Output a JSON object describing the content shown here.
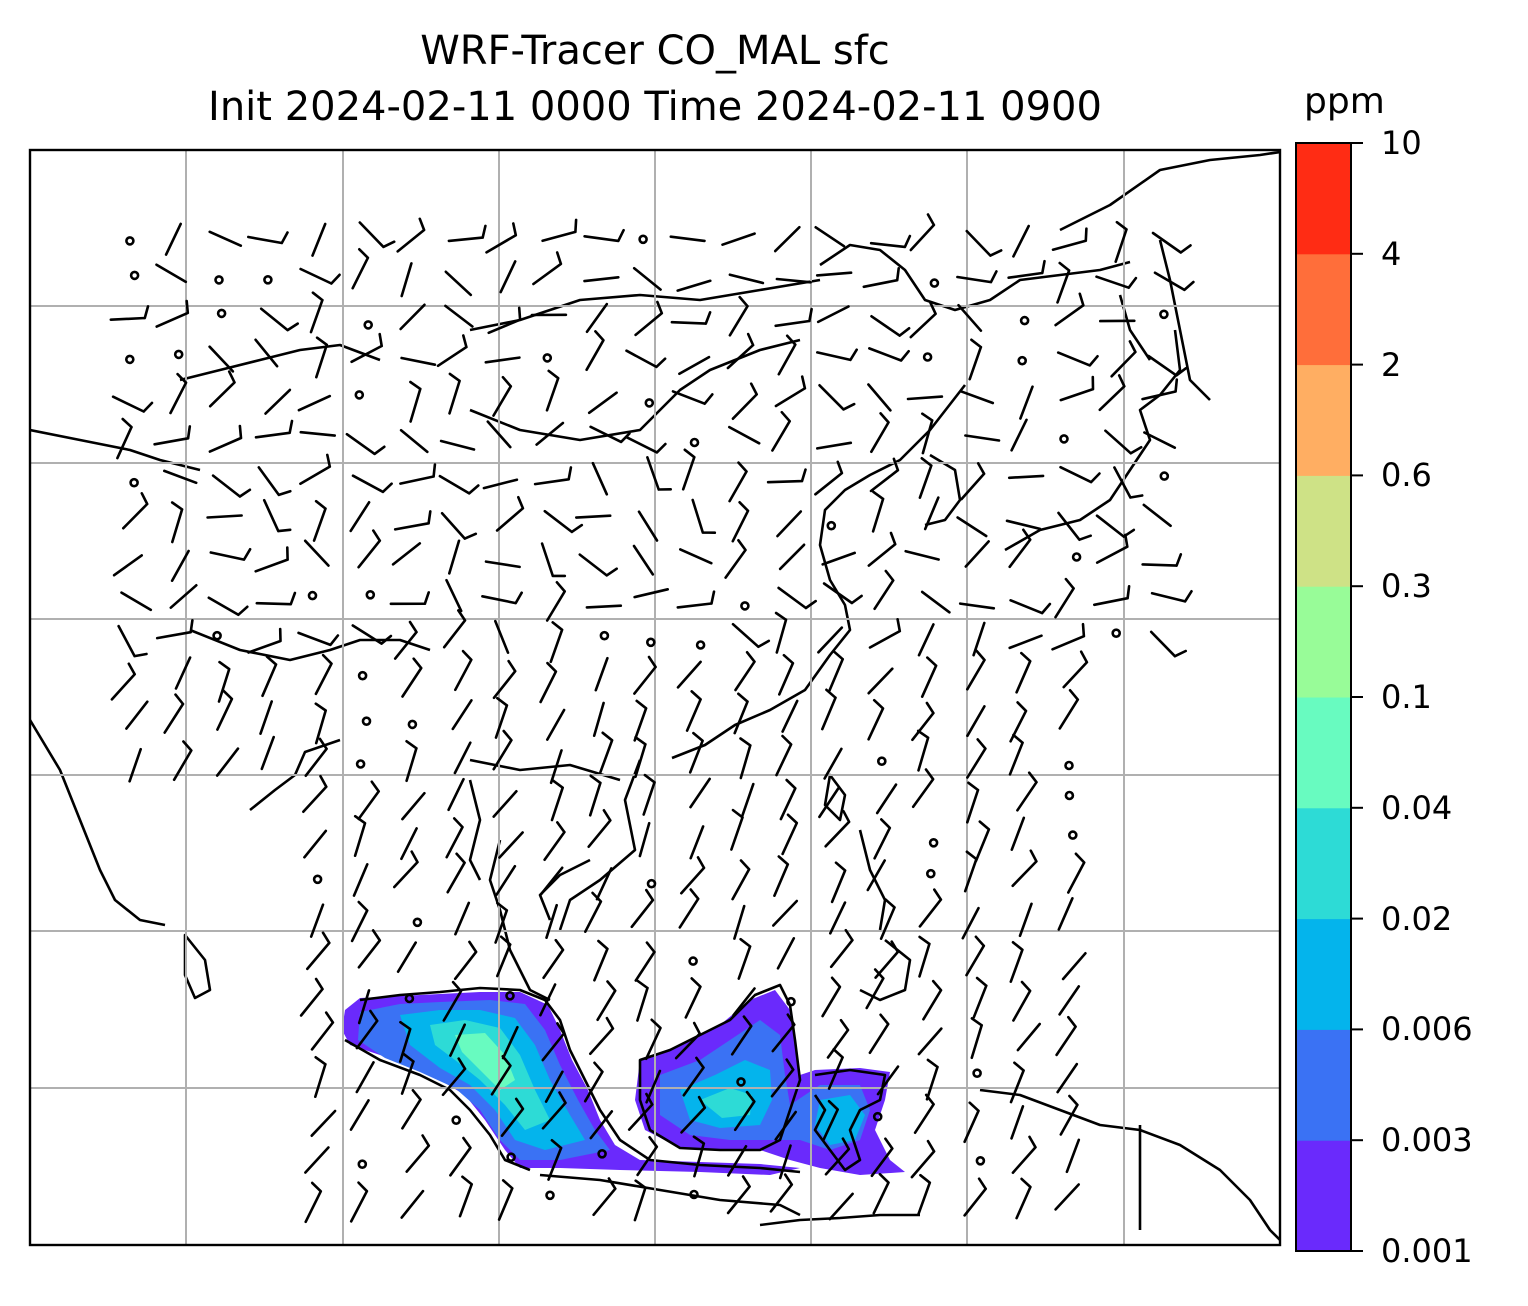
{
  "title": "WRF-Tracer CO_MAL sfc",
  "subtitle": "Init 2024-02-11 0000 Time 2024-02-11 0900",
  "colorbar": {
    "unit": "ppm",
    "ticks": [
      "0.001",
      "0.003",
      "0.006",
      "0.02",
      "0.04",
      "0.1",
      "0.3",
      "0.6",
      "2",
      "4",
      "10"
    ],
    "colors": [
      "#6a2afc",
      "#3a72f4",
      "#04b4ec",
      "#2ddbd6",
      "#68fbc0",
      "#98fc98",
      "#cee286",
      "#ffae62",
      "#ff6e3a",
      "#ff2c14"
    ]
  },
  "map": {
    "extent_lon": [
      60,
      140
    ],
    "extent_lat": [
      -15,
      55
    ],
    "gridlines": true,
    "field": "CO_MAL tracer surface concentration over Sumatra, Java and Borneo",
    "wind_barbs": true
  }
}
